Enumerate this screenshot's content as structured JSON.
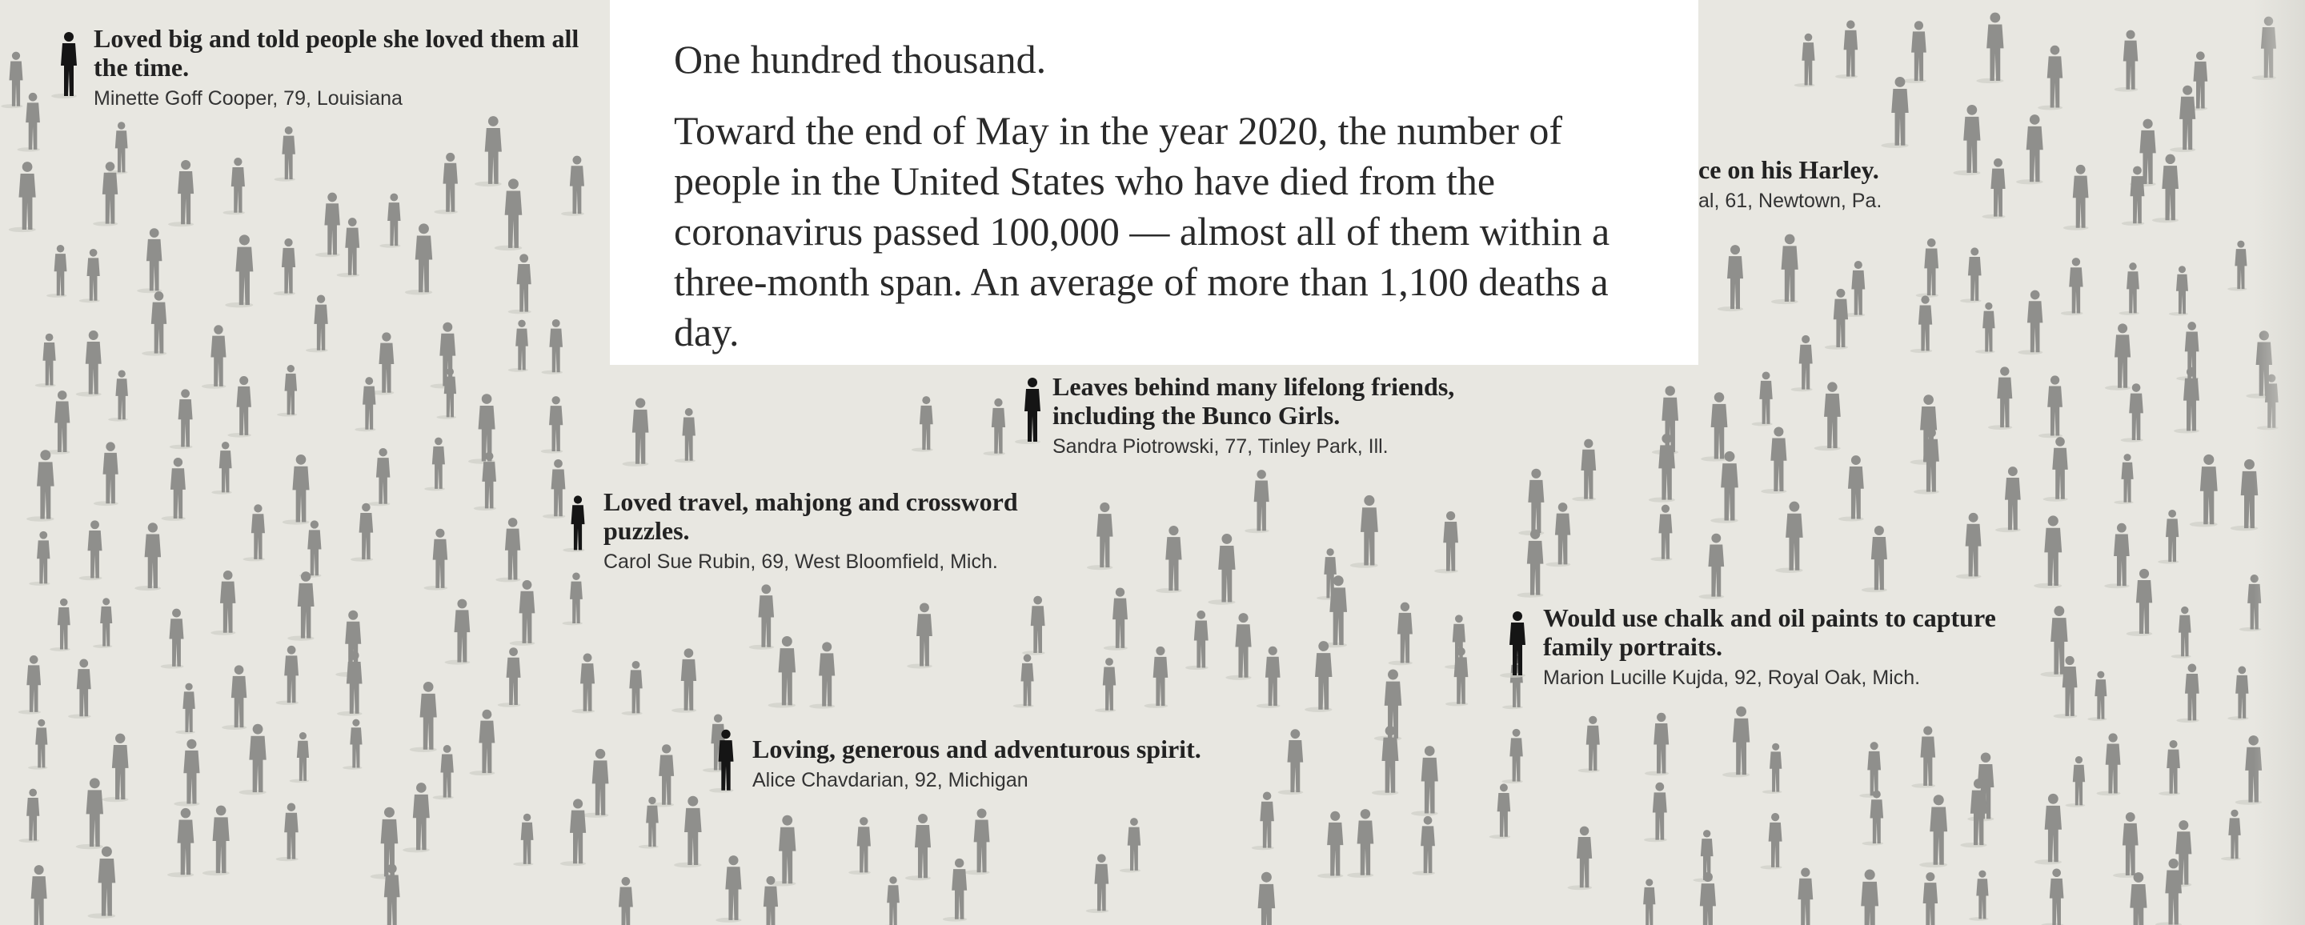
{
  "intro": {
    "lead": "One hundred thousand.",
    "body": "Toward the end of May in the year 2020, the number of people in the United States who have died from the coronavirus passed 100,000 — almost all of them within a three-month span. An average of more than 1,100 deaths a day."
  },
  "captions": [
    {
      "quote": "Loved big and told people she loved them all the time.",
      "name": "Minette Goff Cooper, 79, Louisiana"
    },
    {
      "quote": "ce on his Harley.",
      "name": "al, 61, Newtown, Pa."
    },
    {
      "quote": "Leaves behind many lifelong friends, including the Bunco Girls.",
      "name": "Sandra Piotrowski, 77, Tinley Park, Ill."
    },
    {
      "quote": "Loved travel, mahjong and crossword puzzles.",
      "name": "Carol Sue Rubin, 69, West Bloomfield, Mich."
    },
    {
      "quote": "Would use chalk and oil paints to capture family portraits.",
      "name": "Marion Lucille Kujda, 92, Royal Oak, Mich."
    },
    {
      "quote": "Loving, generous and adventurous spirit.",
      "name": "Alice Chavdarian, 92, Michigan"
    }
  ],
  "colors": {
    "background": "#e8e7e1",
    "figure_gray": "#8f8f8c",
    "figure_highlight": "#151515",
    "card": "#ffffff"
  }
}
